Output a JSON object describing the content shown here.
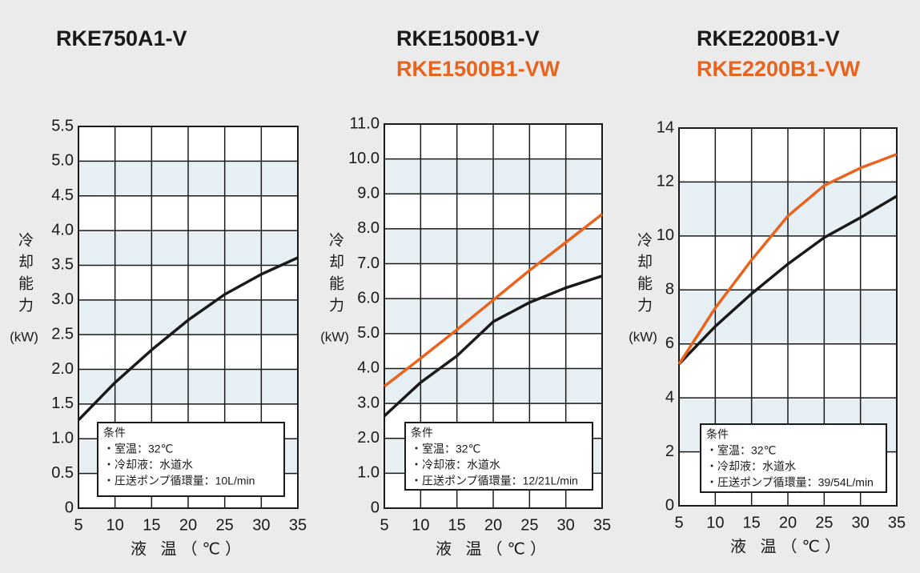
{
  "chart_data": [
    {
      "type": "line",
      "ylabel": "冷却能力",
      "yunit": "(kW)",
      "xlabel": "液 温（℃）",
      "x": [
        5,
        10,
        15,
        20,
        25,
        30,
        35
      ],
      "series": [
        {
          "name": "RKE750A1-V",
          "color": "#1a1a1a",
          "values": [
            1.27,
            1.81,
            2.28,
            2.71,
            3.08,
            3.37,
            3.61
          ]
        }
      ],
      "xlim": [
        5,
        35
      ],
      "xticks": [
        5,
        10,
        15,
        20,
        25,
        30,
        35
      ],
      "ylim": [
        0,
        5.5
      ],
      "yticks": [
        0,
        0.5,
        {
          "value": 1,
          "label": "1.0"
        },
        1.5,
        {
          "value": 2,
          "label": "2.0"
        },
        2.5,
        {
          "value": 3,
          "label": "3.0"
        },
        3.5,
        {
          "value": 4,
          "label": "4.0"
        },
        4.5,
        {
          "value": 5,
          "label": "5.0"
        },
        5.5
      ],
      "grid": true,
      "annotations": [
        "条件",
        "・室温：32℃",
        "・冷却液：水道水",
        "・圧送ポンプ循環量：10L/min"
      ]
    },
    {
      "type": "line",
      "ylabel": "冷却能力",
      "yunit": "(kW)",
      "xlabel": "液 温（℃）",
      "x": [
        5,
        10,
        15,
        20,
        25,
        30,
        35
      ],
      "series": [
        {
          "name": "RKE1500B1-V",
          "color": "#1a1a1a",
          "values": [
            2.64,
            3.6,
            4.36,
            5.34,
            5.89,
            6.31,
            6.65
          ]
        },
        {
          "name": "RKE1500B1-VW",
          "color": "#e8641e",
          "values": [
            3.49,
            4.29,
            5.11,
            5.96,
            6.81,
            7.61,
            8.42
          ]
        }
      ],
      "xlim": [
        5,
        35
      ],
      "xticks": [
        5,
        10,
        15,
        20,
        25,
        30,
        35
      ],
      "ylim": [
        0,
        11
      ],
      "yticks": [
        0,
        {
          "value": 1,
          "label": "1.0"
        },
        {
          "value": 2,
          "label": "2.0"
        },
        {
          "value": 3,
          "label": "3.0"
        },
        {
          "value": 4,
          "label": "4.0"
        },
        {
          "value": 5,
          "label": "5.0"
        },
        {
          "value": 6,
          "label": "6.0"
        },
        {
          "value": 7,
          "label": "7.0"
        },
        {
          "value": 8,
          "label": "8.0"
        },
        {
          "value": 9,
          "label": "9.0"
        },
        {
          "value": 10,
          "label": "10.0"
        },
        {
          "value": 11,
          "label": "11.0"
        }
      ],
      "grid": true,
      "annotations": [
        "条件",
        "・室温：32℃",
        "・冷却液：水道水",
        "・圧送ポンプ循環量：12/21L/min"
      ]
    },
    {
      "type": "line",
      "ylabel": "冷却能力",
      "yunit": "(kW)",
      "xlabel": "液 温（℃）",
      "x": [
        5,
        10,
        15,
        20,
        25,
        30,
        35
      ],
      "series": [
        {
          "name": "RKE2200B1-V",
          "color": "#1a1a1a",
          "values": [
            5.25,
            6.65,
            7.86,
            8.96,
            9.94,
            10.68,
            11.48
          ]
        },
        {
          "name": "RKE2200B1-VW",
          "color": "#e8641e",
          "values": [
            5.25,
            7.33,
            9.11,
            10.74,
            11.87,
            12.52,
            13.03
          ]
        }
      ],
      "xlim": [
        5,
        35
      ],
      "xticks": [
        5,
        10,
        15,
        20,
        25,
        30,
        35
      ],
      "ylim": [
        0,
        14
      ],
      "yticks": [
        0,
        2,
        4,
        6,
        8,
        10,
        12,
        14
      ],
      "grid": true,
      "annotations": [
        "条件",
        "・室温：32℃",
        "・冷却液：水道水",
        "・圧送ポンプ循環量：39/54L/min"
      ]
    }
  ]
}
